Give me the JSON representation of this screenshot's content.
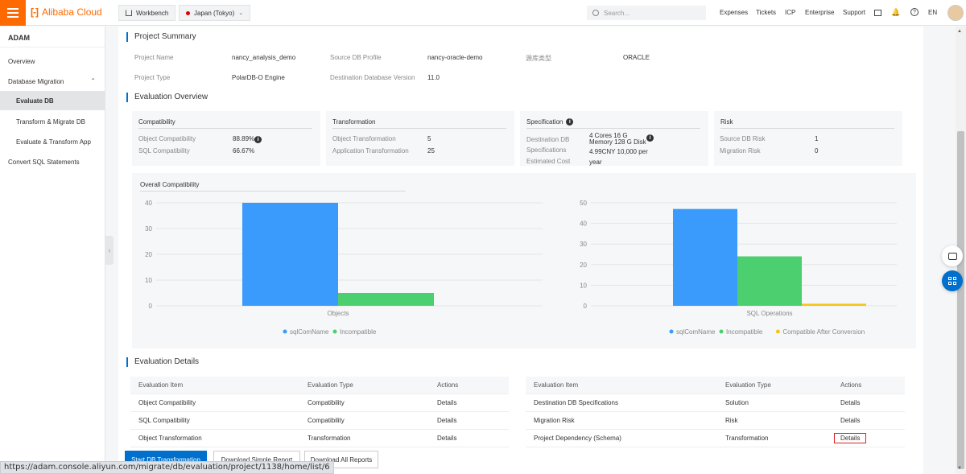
{
  "topbar": {
    "brand": "Alibaba Cloud",
    "brand_color": "#ff6a00",
    "workbench": "Workbench",
    "region": "Japan (Tokyo)",
    "search_placeholder": "Search...",
    "nav": [
      "Expenses",
      "Tickets",
      "ICP",
      "Enterprise",
      "Support"
    ],
    "lang": "EN"
  },
  "sidebar": {
    "title": "ADAM",
    "items": [
      {
        "label": "Overview"
      },
      {
        "label": "Database Migration"
      },
      {
        "label": "Evaluate DB"
      },
      {
        "label": "Transform & Migrate DB"
      },
      {
        "label": "Evaluate & Transform App"
      },
      {
        "label": "Convert SQL Statements"
      }
    ]
  },
  "summary": {
    "title": "Project Summary",
    "project_name_label": "Project Name",
    "project_name": "nancy_analysis_demo",
    "source_profile_label": "Source DB Profile",
    "source_profile": "nancy-oracle-demo",
    "source_type_label": "源库类型",
    "source_type": "ORACLE",
    "project_type_label": "Project Type",
    "project_type": "PolarDB-O Engine",
    "dest_version_label": "Destination Database Version",
    "dest_version": "11.0"
  },
  "overview": {
    "title": "Evaluation Overview",
    "compat": {
      "head": "Compatibility",
      "obj_label": "Object Compatibility",
      "obj_val": "88.89%",
      "sql_label": "SQL Compatibility",
      "sql_val": "66.67%"
    },
    "transform": {
      "head": "Transformation",
      "obj_label": "Object Transformation",
      "obj_val": "5",
      "app_label": "Application Transformation",
      "app_val": "25"
    },
    "spec": {
      "head": "Specification",
      "l1": "Destination DB",
      "l2": "Specifications",
      "l3": "Estimated Cost",
      "v1": "4 Cores 16 G",
      "v2": "Memory 128 G Disk",
      "v3": "4.99CNY 10,000 per",
      "v4": "year"
    },
    "risk": {
      "head": "Risk",
      "src_label": "Source DB Risk",
      "src_val": "1",
      "mig_label": "Migration Risk",
      "mig_val": "0"
    }
  },
  "chart_panel_title": "Overall Compatibility",
  "chart_data": [
    {
      "type": "bar",
      "categories": [
        "Objects"
      ],
      "series": [
        {
          "name": "sqlComName",
          "values": [
            40
          ],
          "color": "#3a9bfc"
        },
        {
          "name": "Incompatible",
          "values": [
            5
          ],
          "color": "#4ccf6e"
        }
      ],
      "ylim": [
        0,
        40
      ],
      "yticks": [
        "0",
        "10",
        "20",
        "30",
        "40"
      ]
    },
    {
      "type": "bar",
      "categories": [
        "SQL Operations"
      ],
      "series": [
        {
          "name": "sqlComName",
          "values": [
            47
          ],
          "color": "#3a9bfc"
        },
        {
          "name": "Incompatible",
          "values": [
            24
          ],
          "color": "#4ccf6e"
        },
        {
          "name": "Compatible After Conversion",
          "values": [
            1
          ],
          "color": "#f5c518"
        }
      ],
      "ylim": [
        0,
        50
      ],
      "yticks": [
        "0",
        "10",
        "20",
        "30",
        "40",
        "50"
      ]
    }
  ],
  "details": {
    "title": "Evaluation Details",
    "headers": [
      "Evaluation Item",
      "Evaluation Type",
      "Actions"
    ],
    "left_rows": [
      [
        "Object Compatibility",
        "Compatibility",
        "Details"
      ],
      [
        "SQL Compatibility",
        "Compatibility",
        "Details"
      ],
      [
        "Object Transformation",
        "Transformation",
        "Details"
      ]
    ],
    "right_rows": [
      [
        "Destination DB Specifications",
        "Solution",
        "Details"
      ],
      [
        "Migration Risk",
        "Risk",
        "Details"
      ],
      [
        "Project Dependency (Schema)",
        "Transformation",
        "Details"
      ]
    ]
  },
  "buttons": {
    "start": "Start DB Transformation",
    "simple": "Download Simple Report",
    "all": "Download All Reports"
  },
  "status_url": "https://adam.console.aliyun.com/migrate/db/evaluation/project/1138/home/list/6"
}
